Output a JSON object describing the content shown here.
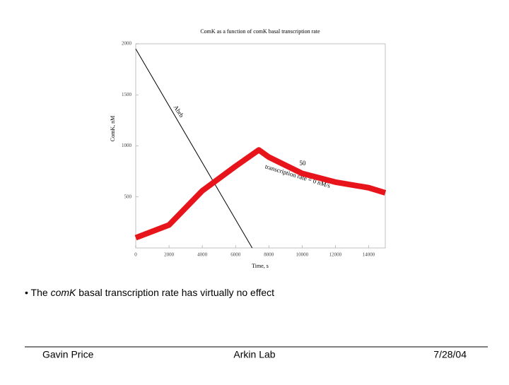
{
  "chart_data": {
    "type": "line",
    "title": "ComK as a function of comK basal transcription rate",
    "xlabel": "Time, s",
    "ylabel": "ComK, nM",
    "xlim": [
      0,
      15000
    ],
    "xticks": [
      0,
      2000,
      4000,
      6000,
      8000,
      10000,
      12000,
      14000
    ],
    "ylim": [
      0,
      2000
    ],
    "yticks": [
      500,
      1000,
      1500,
      2000
    ],
    "series": [
      {
        "name": "Abrb",
        "color": "#000000",
        "x": [
          0,
          7000
        ],
        "values": [
          1950,
          0
        ]
      },
      {
        "color": "#e8141c",
        "x": [
          0,
          2000,
          4000,
          6000,
          7400,
          8000,
          10000,
          12000,
          14000,
          15000
        ],
        "values": [
          100,
          225,
          560,
          800,
          960,
          890,
          730,
          645,
          590,
          540
        ]
      }
    ],
    "annotations": [
      "50",
      "transcription rate = 0 nM/s"
    ]
  },
  "bullet": {
    "before": "The ",
    "italic": "comK",
    "after": " basal transcription rate has virtually no effect"
  },
  "footer": {
    "left": "Gavin Price",
    "center": "Arkin Lab",
    "right": "7/28/04"
  }
}
